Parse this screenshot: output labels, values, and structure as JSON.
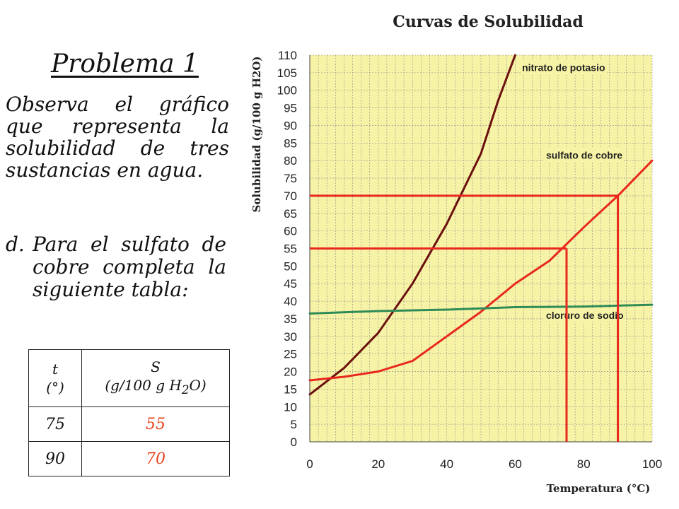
{
  "problem": {
    "title": "Problema 1",
    "intro": "Observa el gráfico que representa la solubilidad de tres sustancias en agua.",
    "question_label": "d.",
    "question_text": "Para el sulfato de cobre completa la siguiente tabla:"
  },
  "table": {
    "header_t": "t",
    "header_t_unit": "(°)",
    "header_s": "S",
    "header_s_unit_pre": "(g/100 g H",
    "header_s_unit_sub": "2",
    "header_s_unit_post": "O)",
    "rows": [
      {
        "t": "75",
        "s": "55"
      },
      {
        "t": "90",
        "s": "70"
      }
    ]
  },
  "colors": {
    "plot_background": "#f7f3a6",
    "grid": "#8a8a8a",
    "potasio": "#6b0f0f",
    "cobre": "#e8281e",
    "sodio": "#2e8b57",
    "guide": "#e8281e",
    "answer_text": "#e8431c"
  },
  "chart_data": {
    "type": "line",
    "title": "Curvas de Solubilidad",
    "xlabel": "Temperatura (°C)",
    "ylabel": "Solubilidad (g/100 g H2O)",
    "xlim": [
      0,
      100
    ],
    "ylim": [
      0,
      110
    ],
    "xticks": [
      0,
      20,
      40,
      60,
      80,
      100
    ],
    "yticks": [
      0,
      5,
      10,
      15,
      20,
      25,
      30,
      35,
      40,
      45,
      50,
      55,
      60,
      65,
      70,
      75,
      80,
      85,
      90,
      95,
      100,
      105,
      110
    ],
    "grid": true,
    "series": [
      {
        "name": "nitrato de potasio",
        "color": "#6b0f0f",
        "x": [
          0,
          10,
          20,
          30,
          40,
          50,
          55,
          60
        ],
        "y": [
          13.5,
          21,
          31,
          45,
          62,
          82,
          97,
          110
        ]
      },
      {
        "name": "sulfato de cobre",
        "color": "#e8281e",
        "x": [
          0,
          10,
          20,
          30,
          40,
          50,
          60,
          70,
          80,
          90,
          100
        ],
        "y": [
          17.5,
          18.5,
          20,
          23,
          30,
          37,
          45,
          51.5,
          61,
          70,
          80
        ]
      },
      {
        "name": "cloruro de sodio",
        "color": "#2e8b57",
        "x": [
          0,
          20,
          40,
          60,
          80,
          100
        ],
        "y": [
          36.5,
          37.2,
          37.6,
          38.3,
          38.5,
          39
        ]
      }
    ],
    "guides": [
      {
        "x": 75,
        "y": 55
      },
      {
        "x": 90,
        "y": 70
      }
    ],
    "series_label_positions": [
      "top-right",
      "right",
      "right"
    ]
  }
}
